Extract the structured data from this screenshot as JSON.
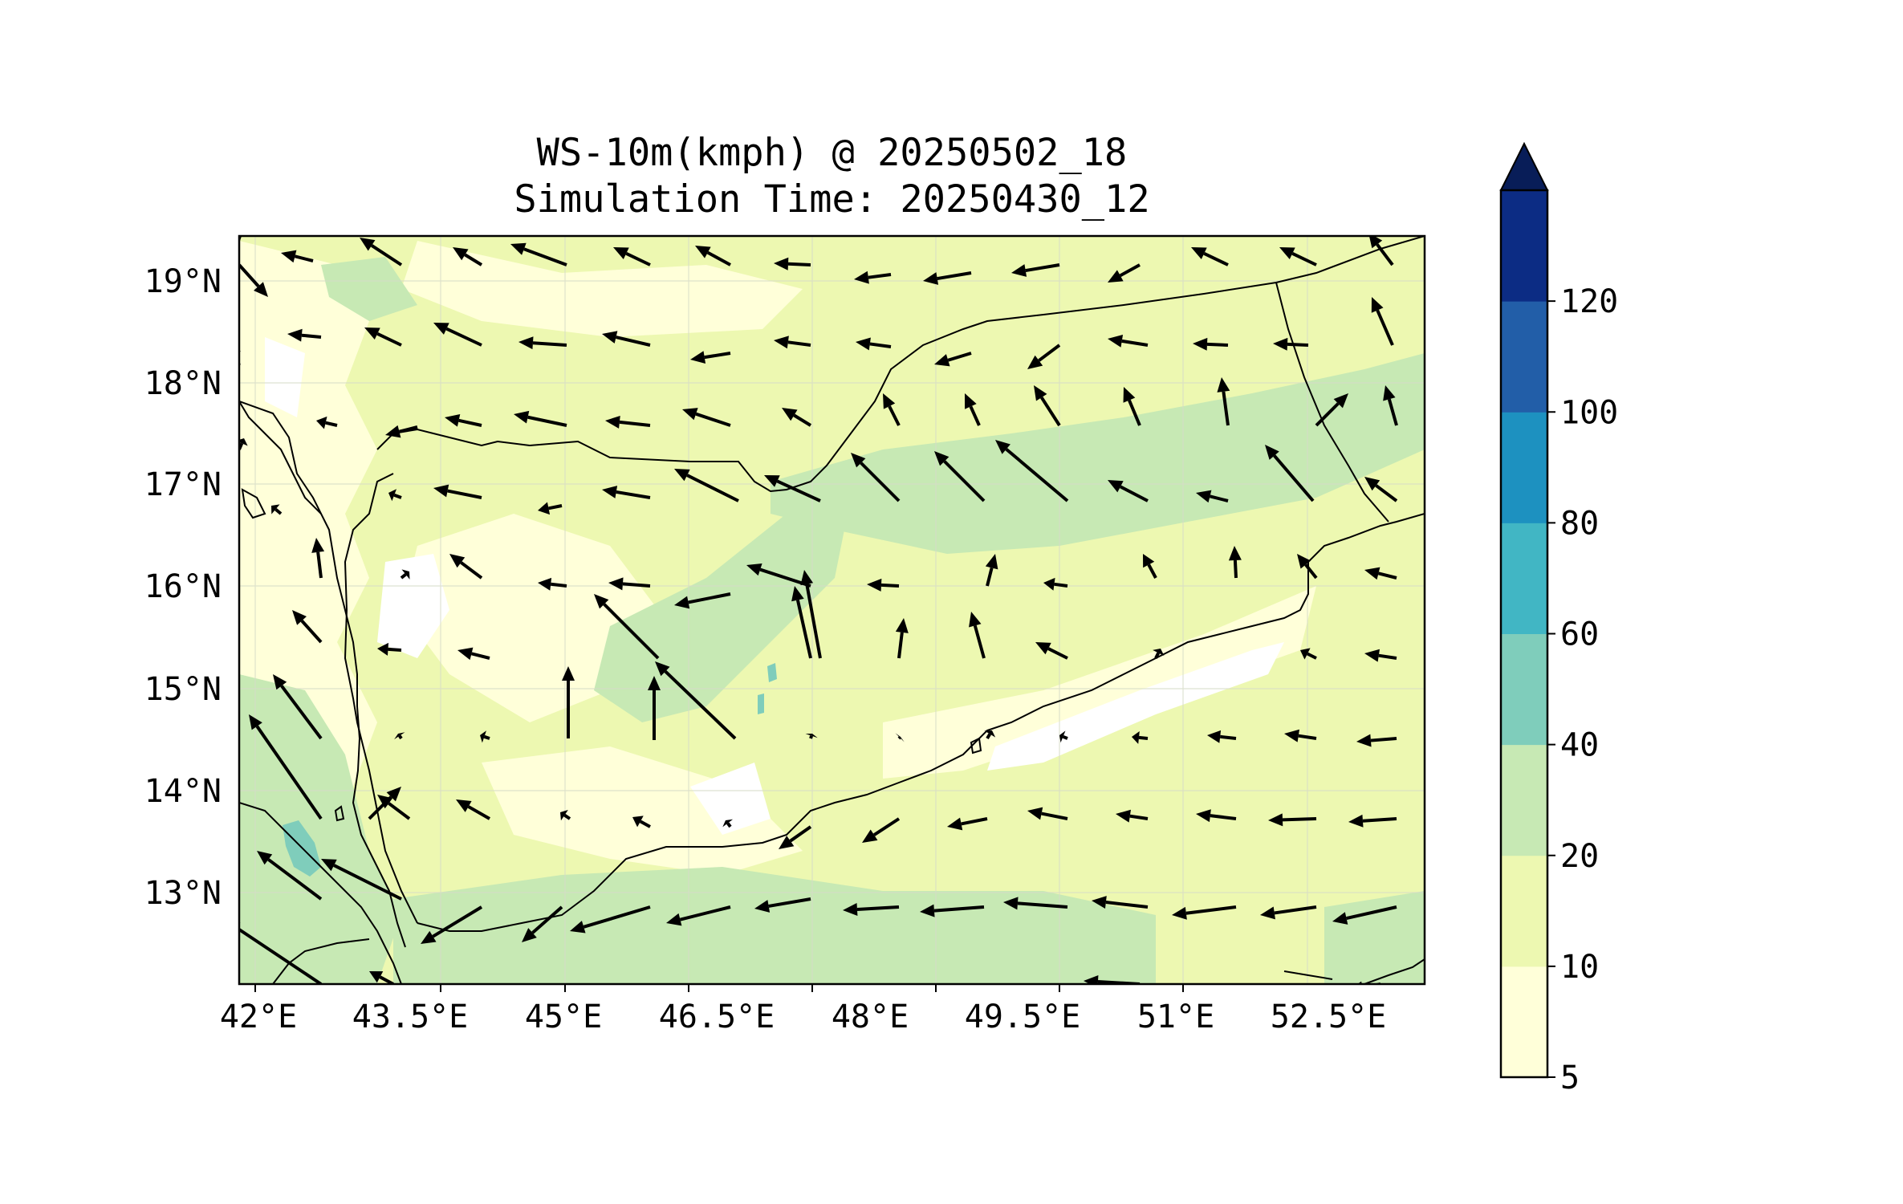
{
  "title": {
    "line1": "WS-10m(kmph) @ 20250502_18",
    "line2": "Simulation Time: 20250430_12"
  },
  "map": {
    "lon_range": [
      42,
      53.8
    ],
    "lat_range": [
      12.1,
      19.45
    ],
    "x_ticks": [
      "42°E",
      "43.5°E",
      "45°E",
      "46.5°E",
      "48°E",
      "49.5°E",
      "51°E",
      "52.5°E"
    ],
    "y_ticks": [
      "19°N",
      "18°N",
      "17°N",
      "16°N",
      "15°N",
      "14°N",
      "13°N"
    ],
    "background_field_color": "#edf8b1",
    "vector_color": "#000000"
  },
  "colorbar": {
    "levels": [
      "5",
      "10",
      "20",
      "40",
      "60",
      "80",
      "100",
      "120"
    ],
    "colors": [
      "#ffffd9",
      "#edf8b1",
      "#c7e9b4",
      "#7fcdbb",
      "#41b6c4",
      "#1d91c0",
      "#225ea8",
      "#0c2c84"
    ],
    "extend_color": "#081d58",
    "extend": "max"
  }
}
